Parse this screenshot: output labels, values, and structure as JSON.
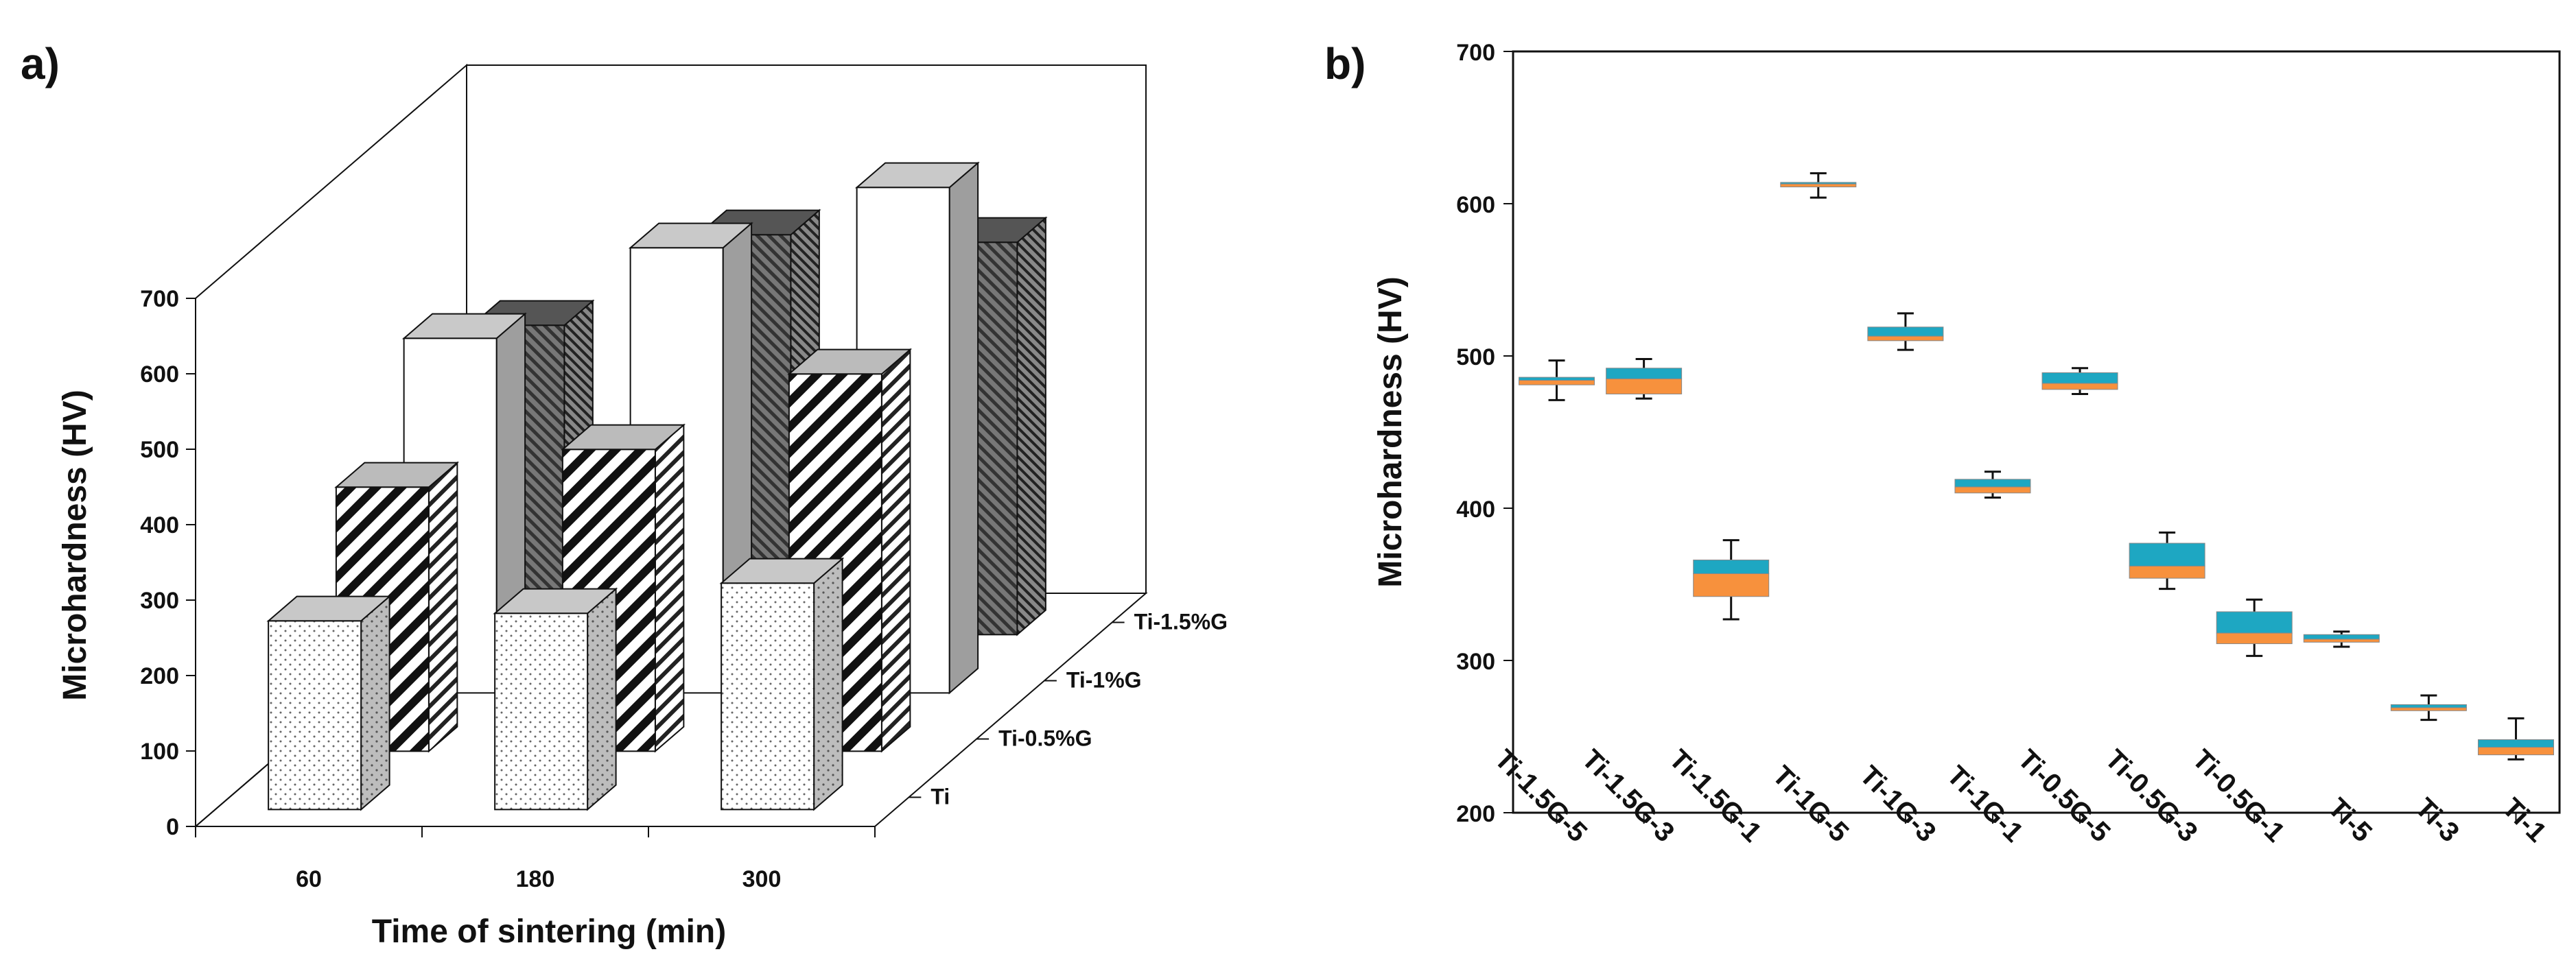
{
  "chart_data": [
    {
      "panel": "a)",
      "type": "bar",
      "style": "3d-grouped",
      "xlabel": "Time of sintering (min)",
      "ylabel": "Microhardness (HV)",
      "ylim": [
        0,
        700
      ],
      "yticks": [
        0,
        100,
        200,
        300,
        400,
        500,
        600,
        700
      ],
      "categories": [
        "60",
        "180",
        "300"
      ],
      "series": [
        {
          "name": "Ti",
          "values": [
            250,
            260,
            300
          ],
          "pattern": "dots"
        },
        {
          "name": "Ti-0.5%G",
          "values": [
            350,
            400,
            500
          ],
          "pattern": "diagonal-stripes"
        },
        {
          "name": "Ti-1%G",
          "values": [
            470,
            590,
            670
          ],
          "pattern": "plain-white"
        },
        {
          "name": "Ti-1.5%G",
          "values": [
            410,
            530,
            520
          ],
          "pattern": "dark-hatch"
        }
      ]
    },
    {
      "panel": "b)",
      "type": "box",
      "ylabel": "Microhardness (HV)",
      "ylim": [
        200,
        700
      ],
      "yticks": [
        200,
        300,
        400,
        500,
        600,
        700
      ],
      "categories": [
        "Ti-1.5G-5",
        "Ti-1.5G-3",
        "Ti-1.5G-1",
        "Ti-1G-5",
        "Ti-1G-3",
        "Ti-1G-1",
        "Ti-0.5G-5",
        "Ti-0.5G-3",
        "Ti-0.5G-1",
        "Ti-5",
        "Ti-3",
        "Ti-1"
      ],
      "boxes": [
        {
          "min": 471,
          "q1": 481,
          "median": 484,
          "q3": 486,
          "max": 497
        },
        {
          "min": 472,
          "q1": 475,
          "median": 485,
          "q3": 492,
          "max": 498
        },
        {
          "min": 327,
          "q1": 342,
          "median": 357,
          "q3": 366,
          "max": 379
        },
        {
          "min": 604,
          "q1": 611,
          "median": 613,
          "q3": 614,
          "max": 620
        },
        {
          "min": 504,
          "q1": 510,
          "median": 513,
          "q3": 519,
          "max": 528
        },
        {
          "min": 407,
          "q1": 410,
          "median": 414,
          "q3": 419,
          "max": 424
        },
        {
          "min": 475,
          "q1": 478,
          "median": 482,
          "q3": 489,
          "max": 492
        },
        {
          "min": 347,
          "q1": 354,
          "median": 362,
          "q3": 377,
          "max": 384
        },
        {
          "min": 303,
          "q1": 311,
          "median": 318,
          "q3": 332,
          "max": 340
        },
        {
          "min": 309,
          "q1": 312,
          "median": 314,
          "q3": 317,
          "max": 319
        },
        {
          "min": 261,
          "q1": 267,
          "median": 269,
          "q3": 271,
          "max": 277
        },
        {
          "min": 235,
          "q1": 238,
          "median": 243,
          "q3": 248,
          "max": 262
        }
      ],
      "colors": {
        "upper": "#1ea7c2",
        "lower": "#f7913d",
        "whisker": "#111111"
      }
    }
  ]
}
